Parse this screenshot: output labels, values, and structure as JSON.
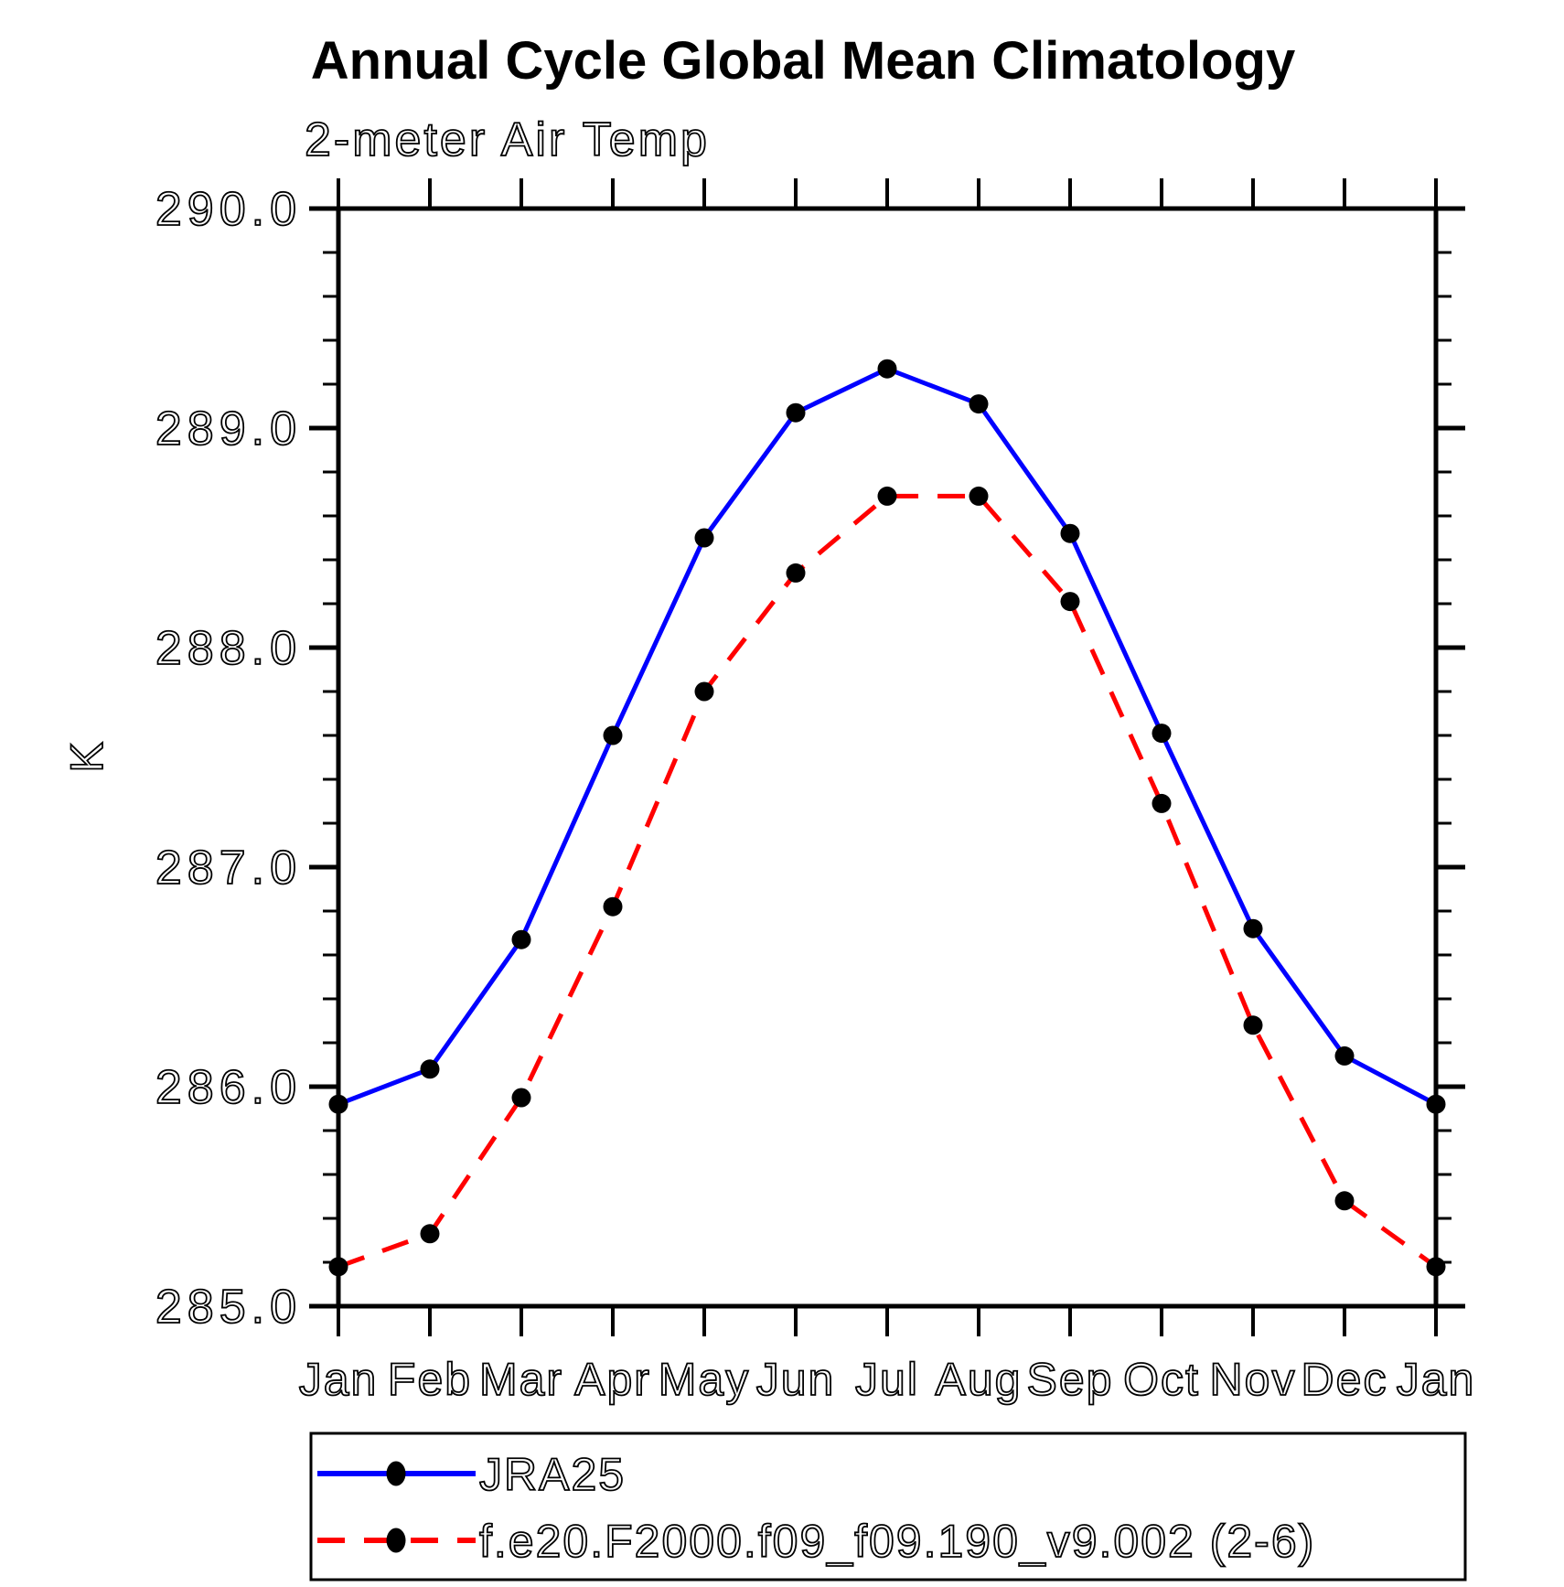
{
  "chart_data": {
    "type": "line",
    "title": "Annual Cycle Global Mean Climatology",
    "subtitle": "2-meter Air Temp",
    "ylabel": "K",
    "xlabel": "",
    "categories": [
      "Jan",
      "Feb",
      "Mar",
      "Apr",
      "May",
      "Jun",
      "Jul",
      "Aug",
      "Sep",
      "Oct",
      "Nov",
      "Dec",
      "Jan"
    ],
    "series": [
      {
        "name": "JRA25",
        "line_color": "#0000ff",
        "line_style": "solid",
        "marker": "filled-circle",
        "marker_color": "#000000",
        "values": [
          285.92,
          286.08,
          286.67,
          287.6,
          288.5,
          289.07,
          289.27,
          289.11,
          288.52,
          287.61,
          286.72,
          286.14,
          285.92
        ]
      },
      {
        "name": "f.e20.F2000.f09_f09.190_v9.002 (2-6)",
        "line_color": "#ff0000",
        "line_style": "dashed",
        "marker": "filled-circle",
        "marker_color": "#000000",
        "values": [
          285.18,
          285.33,
          285.95,
          286.82,
          287.8,
          288.34,
          288.69,
          288.69,
          288.21,
          287.29,
          286.28,
          285.48,
          285.18
        ]
      }
    ],
    "ylim": [
      285.0,
      290.0
    ],
    "ytick_step": 1.0,
    "yminor_step": 0.2,
    "ytick_decimals": 1,
    "grid": false,
    "legend_position": "bottom-left"
  }
}
